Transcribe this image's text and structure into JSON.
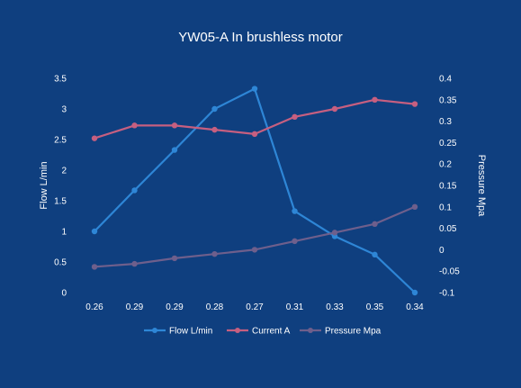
{
  "chart_data": {
    "type": "line",
    "title": "YW05-A In brushless motor",
    "categories": [
      "0.26",
      "0.29",
      "0.29",
      "0.28",
      "0.27",
      "0.31",
      "0.33",
      "0.35",
      "0.34"
    ],
    "series": [
      {
        "name": "Flow L/min",
        "axis": "left",
        "color": "#2e86d6",
        "values": [
          1.0,
          1.67,
          2.33,
          3.0,
          3.33,
          1.33,
          0.92,
          0.62,
          0.0
        ]
      },
      {
        "name": "Current A",
        "axis": "left",
        "color": "#c65f80",
        "values": [
          2.52,
          2.73,
          2.73,
          2.66,
          2.59,
          2.87,
          3.0,
          3.15,
          3.08
        ]
      },
      {
        "name": "Pressure Mpa",
        "axis": "right",
        "color": "#6e5f8c",
        "values": [
          -0.04,
          -0.033,
          -0.02,
          -0.01,
          0.0,
          0.02,
          0.04,
          0.06,
          0.1
        ]
      }
    ],
    "ylabel": "Flow  L/min",
    "y2label": "Pressure  Mpa",
    "ylim": [
      0,
      3.5
    ],
    "y2lim": [
      -0.1,
      0.4
    ],
    "yticks": [
      "0",
      "0.5",
      "1",
      "1.5",
      "2",
      "2.5",
      "3",
      "3.5"
    ],
    "y2ticks": [
      "-0.1",
      "-0.05",
      "0",
      "0.05",
      "0.1",
      "0.15",
      "0.2",
      "0.25",
      "0.3",
      "0.35",
      "0.4"
    ],
    "grid": false,
    "legend": "bottom"
  }
}
